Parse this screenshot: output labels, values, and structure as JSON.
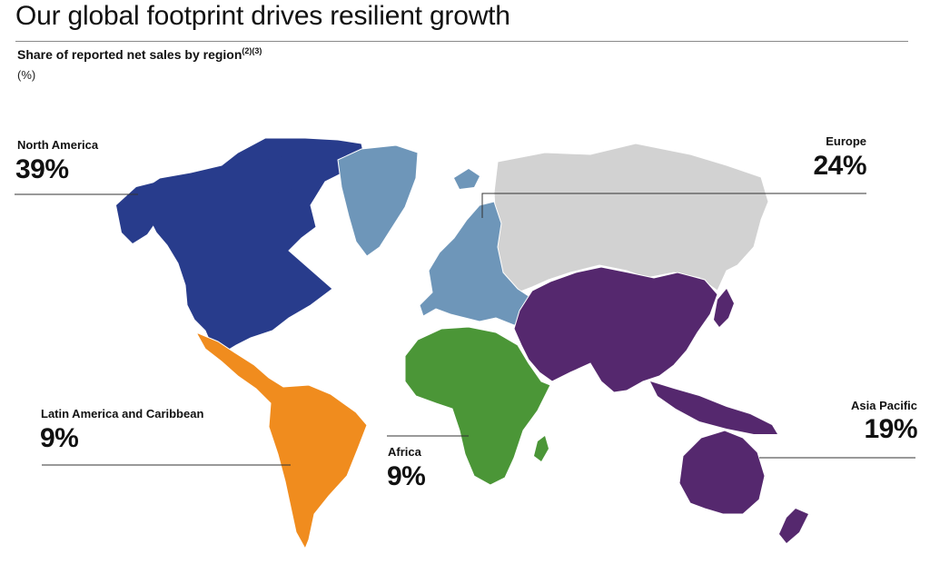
{
  "title": "Our global footprint drives resilient growth",
  "subtitle": "Share of reported net sales by region",
  "footnote_refs": "(2)(3)",
  "unit": "(%)",
  "chart_data": {
    "type": "pie",
    "title": "Share of reported net sales by region",
    "unit": "%",
    "categories": [
      "North America",
      "Europe",
      "Asia Pacific",
      "Latin America and Caribbean",
      "Africa"
    ],
    "values": [
      39,
      24,
      19,
      9,
      9
    ],
    "labels": [
      "39%",
      "24%",
      "19%",
      "9%",
      "9%"
    ],
    "colors": {
      "North America": "#283c8c",
      "Europe": "#6e96b9",
      "Asia Pacific": "#55286e",
      "Latin America and Caribbean": "#f08c1e",
      "Africa": "#4b9637",
      "Other": "#d2d2d2"
    }
  }
}
